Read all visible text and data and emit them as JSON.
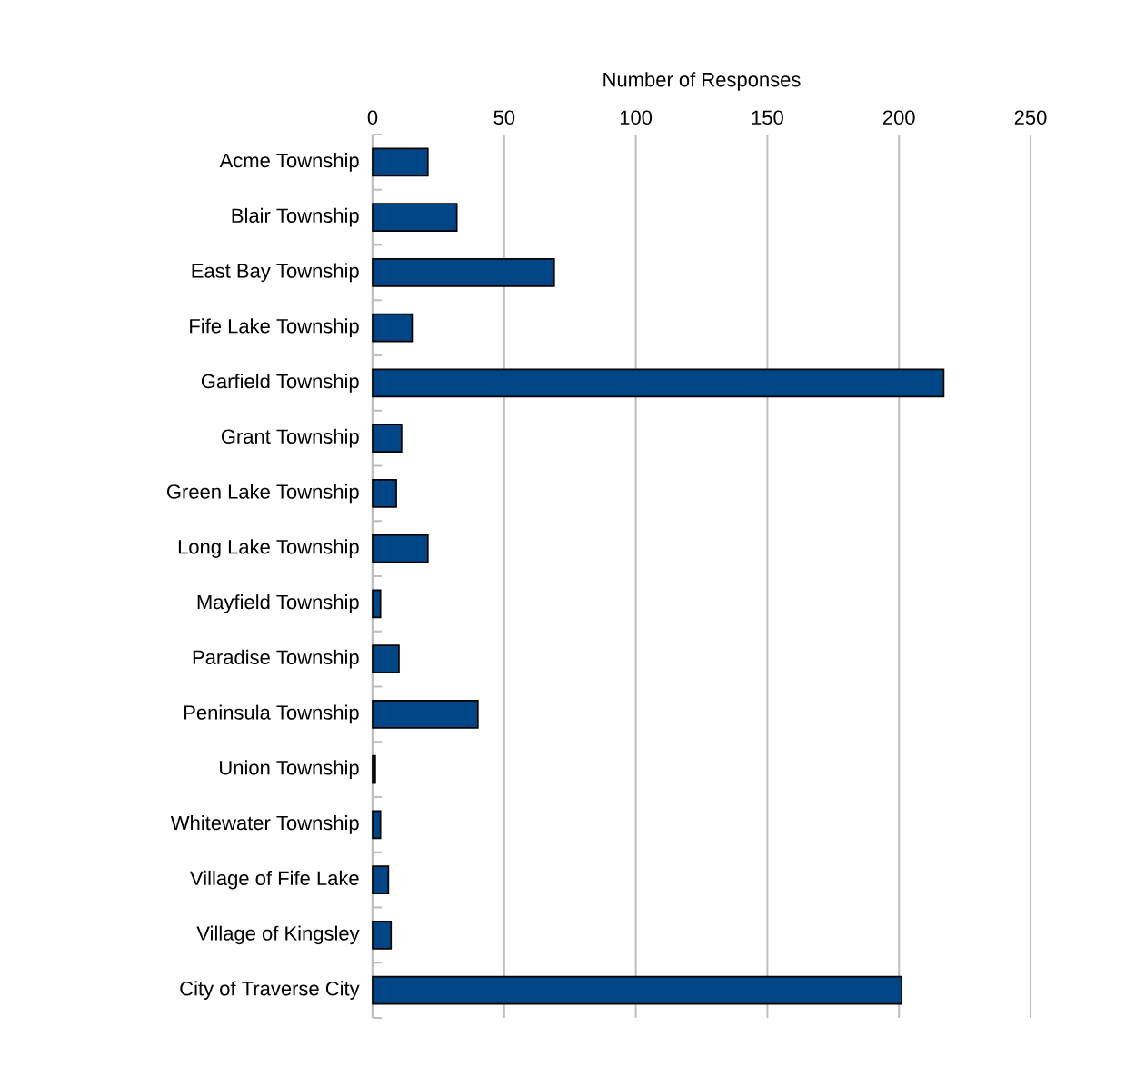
{
  "chart_data": {
    "type": "bar",
    "orientation": "horizontal",
    "xlabel": "Number of Responses",
    "categories": [
      "Acme Township",
      "Blair Township",
      "East Bay Township",
      "Fife Lake Township",
      "Garfield Township",
      "Grant Township",
      "Green Lake Township",
      "Long Lake Township",
      "Mayfield Township",
      "Paradise Township",
      "Peninsula Township",
      "Union Township",
      "Whitewater Township",
      "Village of Fife Lake",
      "Village of Kingsley",
      "City of Traverse City"
    ],
    "values": [
      21,
      32,
      69,
      15,
      217,
      11,
      9,
      21,
      3,
      10,
      40,
      1,
      3,
      6,
      7,
      201
    ],
    "color": "#004586",
    "xlim": [
      0,
      250
    ],
    "xticks": [
      0,
      50,
      100,
      150,
      200,
      250
    ],
    "grid": "x"
  }
}
